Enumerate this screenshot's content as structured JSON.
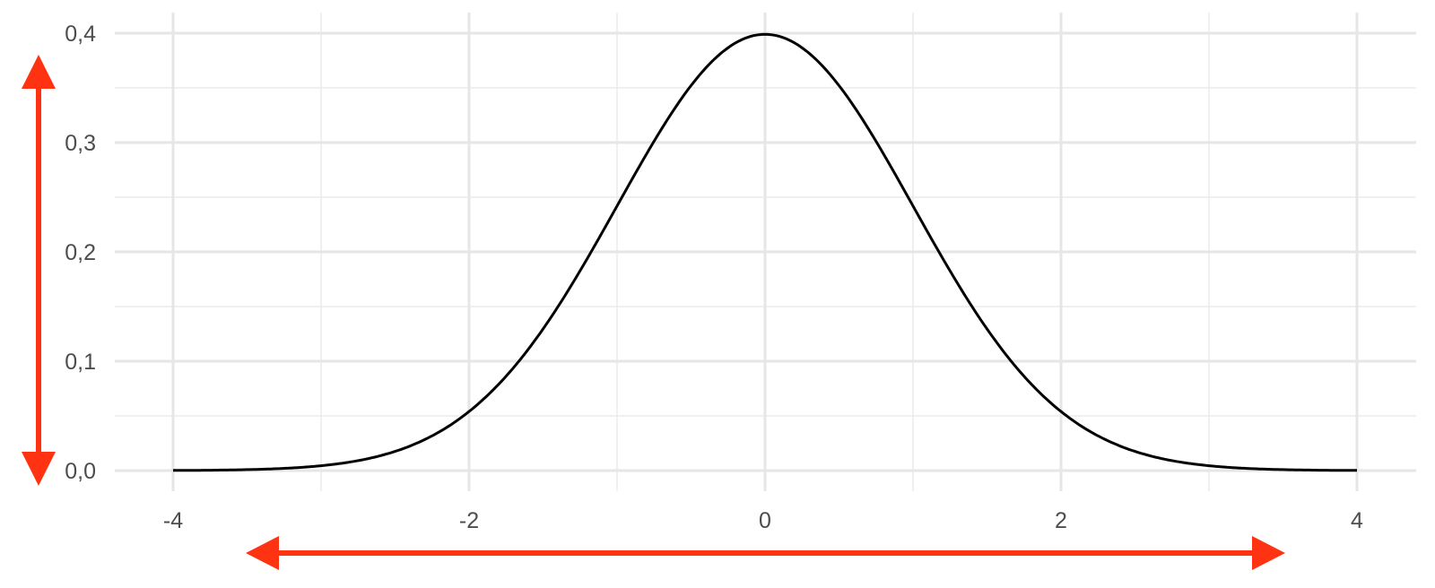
{
  "chart_data": {
    "type": "line",
    "title": "",
    "xlabel": "",
    "ylabel": "",
    "xlim": [
      -4,
      4
    ],
    "ylim": [
      0,
      0.4
    ],
    "x_ticks": [
      -4,
      -2,
      0,
      2,
      4
    ],
    "x_tick_labels": [
      "-4",
      "-2",
      "0",
      "2",
      "4"
    ],
    "y_ticks": [
      0,
      0.1,
      0.2,
      0.3,
      0.4
    ],
    "y_tick_labels": [
      "0,0",
      "0,1",
      "0,2",
      "0,3",
      "0,4"
    ],
    "grid": true,
    "series": [
      {
        "function": "standard normal density",
        "x": [
          -4,
          -3.5,
          -3,
          -2.5,
          -2,
          -1.5,
          -1,
          -0.5,
          0,
          0.5,
          1,
          1.5,
          2,
          2.5,
          3,
          3.5,
          4
        ],
        "y": [
          0.0001,
          0.0009,
          0.0044,
          0.0175,
          0.054,
          0.1295,
          0.242,
          0.3521,
          0.3989,
          0.3521,
          0.242,
          0.1295,
          0.054,
          0.0175,
          0.0044,
          0.0009,
          0.0001
        ],
        "color": "#000000"
      }
    ],
    "annotations": [
      {
        "type": "double-arrow",
        "orientation": "vertical",
        "color": "#ff3311"
      },
      {
        "type": "double-arrow",
        "orientation": "horizontal",
        "color": "#ff3311"
      }
    ]
  }
}
